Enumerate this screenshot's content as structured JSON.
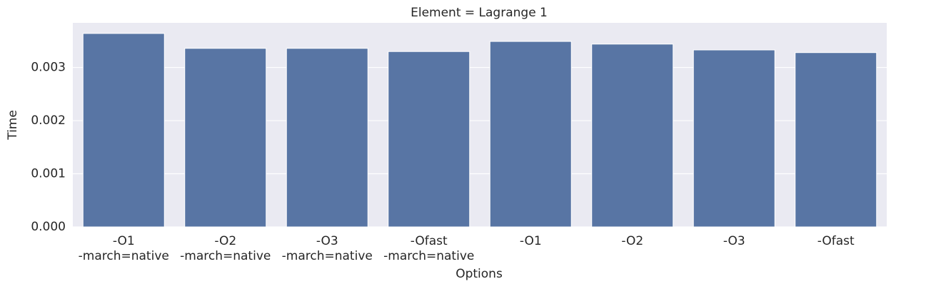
{
  "chart_data": {
    "type": "bar",
    "title": "Element = Lagrange 1",
    "x_label": "Options",
    "y_label": "Time",
    "categories": [
      "-O1\n-march=native",
      "-O2\n-march=native",
      "-O3\n-march=native",
      "-Ofast\n-march=native",
      "-O1",
      "-O2",
      "-O3",
      "-Ofast"
    ],
    "values": [
      0.00364,
      0.00336,
      0.00336,
      0.0033,
      0.00349,
      0.00344,
      0.00333,
      0.00328
    ],
    "color": "#5875a4",
    "ylim": [
      0,
      0.00384
    ],
    "yticks": [
      {
        "value": 0,
        "label": "0.000"
      },
      {
        "value": 0.001,
        "label": "0.001"
      },
      {
        "value": 0.002,
        "label": "0.002"
      },
      {
        "value": 0.003,
        "label": "0.003"
      }
    ],
    "grid": true
  }
}
